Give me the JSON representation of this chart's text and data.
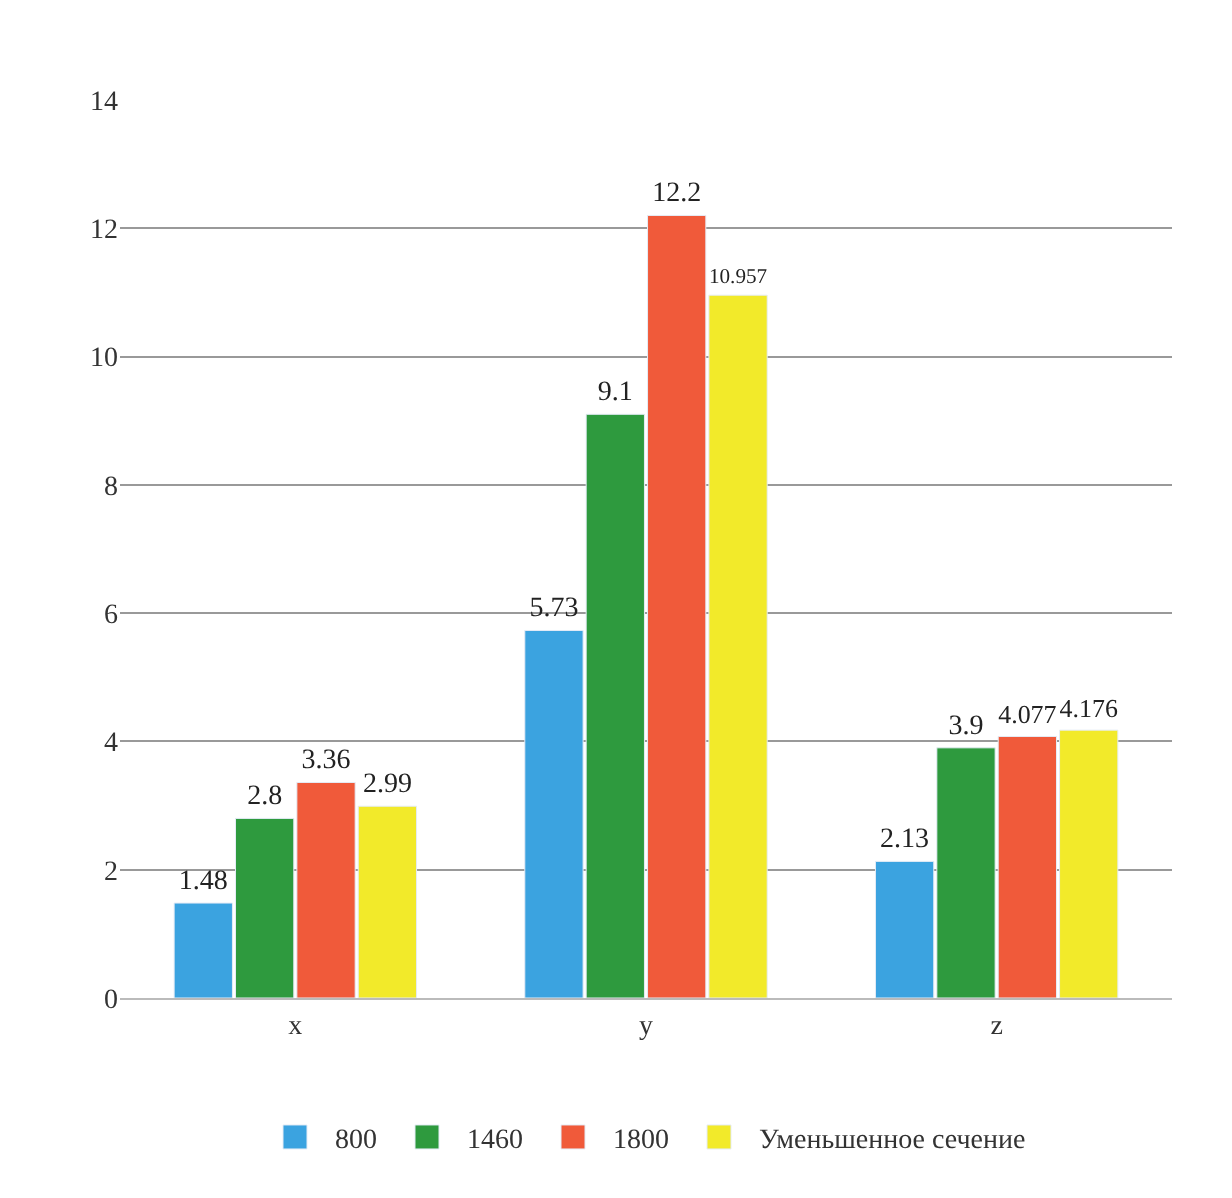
{
  "chart_data": {
    "type": "bar",
    "categories": [
      "x",
      "y",
      "z"
    ],
    "series": [
      {
        "name": "800",
        "color": "#3ba3e0",
        "values": [
          1.48,
          5.73,
          2.13
        ]
      },
      {
        "name": "1460",
        "color": "#2e9a3e",
        "values": [
          2.8,
          9.1,
          3.9
        ]
      },
      {
        "name": "1800",
        "color": "#f05a3a",
        "values": [
          3.36,
          12.2,
          4.077
        ]
      },
      {
        "name": "Уменьшенное сечение",
        "color": "#f2ea2a",
        "values": [
          2.99,
          10.957,
          4.176
        ]
      }
    ],
    "ylim": [
      0,
      14
    ],
    "yticks": [
      0,
      2,
      4,
      6,
      8,
      10,
      12,
      14
    ],
    "grid": "y",
    "legend": "bottom",
    "data_labels": true
  }
}
